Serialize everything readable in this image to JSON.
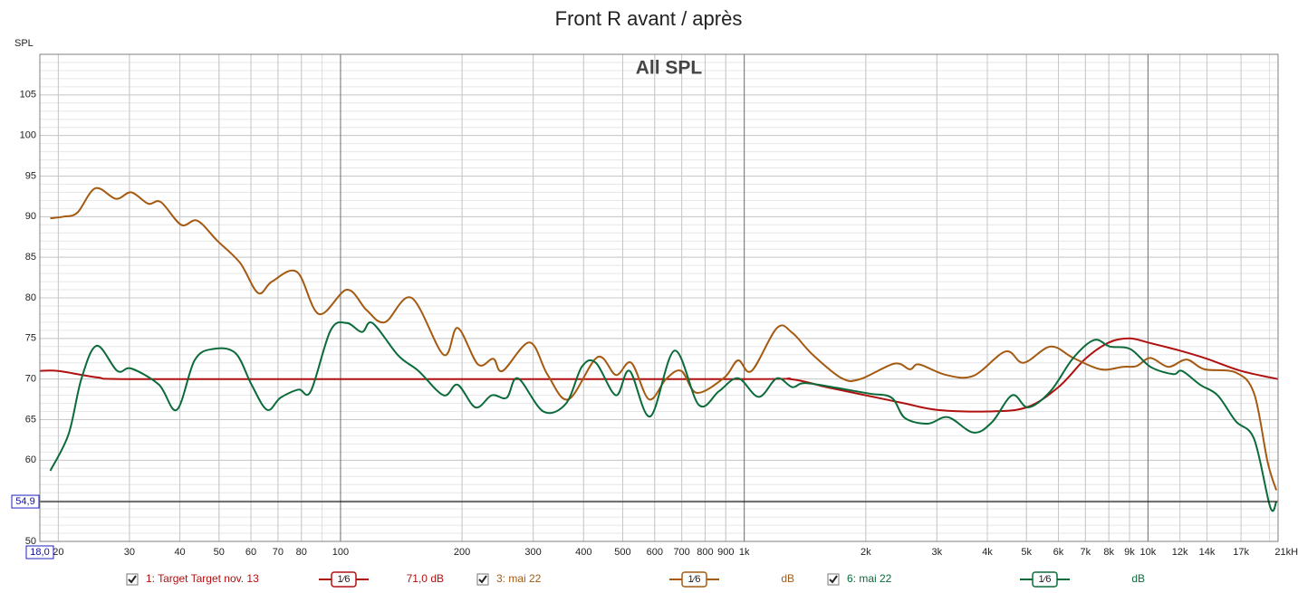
{
  "chart_data": {
    "type": "line",
    "title": "Front R avant / après",
    "subtitle": "All SPL",
    "y_label": "SPL",
    "x_scale": "log",
    "grid": true,
    "xlim": [
      18,
      21000
    ],
    "ylim": [
      50,
      110
    ],
    "yticks": [
      50,
      55,
      60,
      65,
      70,
      75,
      80,
      85,
      90,
      95,
      100,
      105
    ],
    "xticks": [
      20,
      30,
      40,
      50,
      60,
      70,
      80,
      100,
      200,
      300,
      400,
      500,
      600,
      700,
      800,
      900,
      {
        "value": 1000,
        "label": "1k"
      },
      {
        "value": 2000,
        "label": "2k"
      },
      {
        "value": 3000,
        "label": "3k"
      },
      {
        "value": 4000,
        "label": "4k"
      },
      {
        "value": 5000,
        "label": "5k"
      },
      {
        "value": 6000,
        "label": "6k"
      },
      {
        "value": 7000,
        "label": "7k"
      },
      {
        "value": 8000,
        "label": "8k"
      },
      {
        "value": 9000,
        "label": "9k"
      },
      {
        "value": 10000,
        "label": "10k"
      },
      {
        "value": 12000,
        "label": "12k"
      },
      {
        "value": 14000,
        "label": "14k"
      },
      {
        "value": 17000,
        "label": "17k"
      },
      {
        "value": 21000,
        "label": "21kHz"
      }
    ],
    "cursor": {
      "x": 18.0,
      "x_label": "18,0",
      "y": 54.9,
      "y_label": "54,9"
    },
    "series": [
      {
        "name": "1: Target Target nov. 13",
        "smoothing": "1⁄6",
        "level": "71,0 dB",
        "color": "#b01010",
        "x": [
          18,
          20,
          25,
          30,
          100,
          1000,
          1300,
          1600,
          2000,
          2500,
          3000,
          4000,
          5000,
          6000,
          7000,
          8000,
          9000,
          10000,
          12000,
          14000,
          17000,
          21000
        ],
        "values": [
          71,
          71,
          70.2,
          70,
          70,
          70,
          70,
          69,
          68,
          67,
          66.2,
          66,
          66.5,
          69,
          72.5,
          74.5,
          75,
          74.5,
          73.5,
          72.5,
          71,
          70
        ]
      },
      {
        "name": "3: mai 22",
        "smoothing": "1⁄6",
        "level": "dB",
        "color": "#a55a12",
        "x": [
          19.1,
          20.6,
          22.3,
          24.7,
          27.8,
          30.3,
          33.4,
          35.9,
          40.3,
          44.2,
          49.6,
          56.4,
          62.5,
          67.6,
          78,
          88.4,
          103.7,
          116,
          128.8,
          150,
          180,
          195,
          219,
          239,
          252,
          294,
          326,
          367,
          433,
          481,
          525,
          581,
          640,
          698,
          763,
          893,
          965,
          1043,
          1205,
          1315,
          1477,
          1744,
          1940,
          2354,
          2572,
          2710,
          3163,
          3697,
          4440,
          4918,
          5736,
          6530,
          7630,
          8670,
          9370,
          10140,
          11240,
          12460,
          13800,
          16500,
          18320,
          19780,
          20800
        ],
        "values": [
          89.8,
          90,
          90.5,
          93.5,
          92.2,
          93,
          91.6,
          91.8,
          89,
          89.5,
          87,
          84.3,
          80.6,
          82,
          83.2,
          78,
          81,
          78.5,
          77,
          80,
          73,
          76.3,
          71.8,
          72.5,
          71,
          74.5,
          70.5,
          67.5,
          72.7,
          70.5,
          72,
          67.5,
          70,
          71,
          68.3,
          70.2,
          72.3,
          71,
          76.3,
          75.7,
          73,
          70.1,
          70,
          71.9,
          71.2,
          71.8,
          70.5,
          70.4,
          73.4,
          72,
          74,
          72.6,
          71.2,
          71.5,
          71.6,
          72.6,
          71.5,
          72.4,
          71.2,
          70.8,
          68.2,
          59.8,
          56.3
        ]
      },
      {
        "name": "6: mai 22",
        "smoothing": "1⁄6",
        "level": "dB",
        "color": "#0b6b3a",
        "x": [
          19.1,
          21.2,
          22.8,
          24.9,
          28,
          30.3,
          35.5,
          39.3,
          43.5,
          48.3,
          54.9,
          60.2,
          65.8,
          71,
          78.7,
          84.4,
          94.5,
          103.7,
          113,
          120,
          139,
          156,
          180,
          195,
          216,
          237,
          258,
          275,
          318,
          362,
          396,
          429,
          481,
          520,
          585,
          672,
          772,
          866,
          965,
          1086,
          1205,
          1315,
          1416,
          1744,
          2045,
          2318,
          2500,
          2850,
          3196,
          3697,
          4110,
          4610,
          5050,
          5736,
          6530,
          7360,
          8050,
          9040,
          10140,
          11540,
          12140,
          13450,
          14870,
          16500,
          18320,
          20090,
          20800
        ],
        "values": [
          58.7,
          63.2,
          70,
          74.1,
          71,
          71.3,
          69.3,
          66.2,
          72.3,
          73.7,
          73.2,
          69.3,
          66.2,
          67.7,
          68.7,
          68.5,
          76,
          76.9,
          75.8,
          76.9,
          72.9,
          71,
          68,
          69.3,
          66.5,
          68,
          67.7,
          70.1,
          66,
          67,
          71.5,
          72,
          68,
          71,
          65.4,
          73.5,
          66.8,
          68.5,
          70.1,
          67.8,
          70.1,
          69,
          69.5,
          68.8,
          68.2,
          67.7,
          65.2,
          64.5,
          65.3,
          63.4,
          64.7,
          68,
          66.5,
          68.5,
          72.6,
          74.8,
          74,
          73.7,
          71.5,
          70.6,
          71,
          69.3,
          68,
          64.8,
          62.6,
          54.2,
          54.9
        ]
      }
    ]
  }
}
